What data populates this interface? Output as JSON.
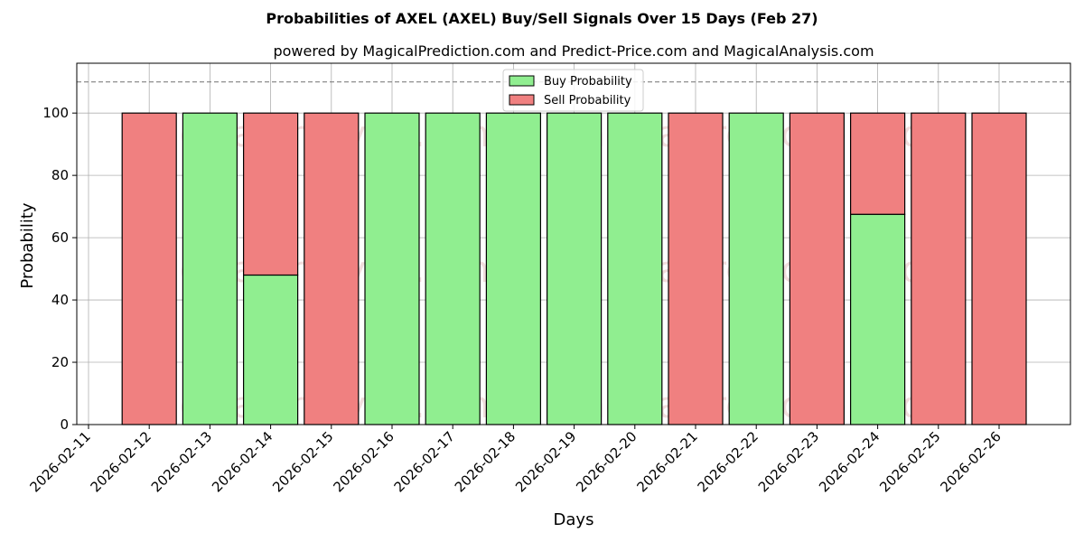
{
  "chart_data": {
    "type": "bar",
    "stacked": true,
    "title": "Probabilities of AXEL (AXEL) Buy/Sell Signals Over 15 Days (Feb 27)",
    "subtitle": "powered by MagicalPrediction.com and Predict-Price.com and MagicalAnalysis.com",
    "xlabel": "Days",
    "ylabel": "Probability",
    "ylim": [
      0,
      116
    ],
    "yticks": [
      0,
      20,
      40,
      60,
      80,
      100
    ],
    "xtick_labels": [
      "2026-02-11",
      "2026-02-12",
      "2026-02-13",
      "2026-02-14",
      "2026-02-15",
      "2026-02-16",
      "2026-02-17",
      "2026-02-18",
      "2026-02-19",
      "2026-02-20",
      "2026-02-21",
      "2026-02-22",
      "2026-02-23",
      "2026-02-24",
      "2026-02-25",
      "2026-02-26"
    ],
    "categories": [
      "2026-02-12",
      "2026-02-13",
      "2026-02-14",
      "2026-02-15",
      "2026-02-16",
      "2026-02-17",
      "2026-02-18",
      "2026-02-19",
      "2026-02-20",
      "2026-02-21",
      "2026-02-22",
      "2026-02-23",
      "2026-02-24",
      "2026-02-25",
      "2026-02-26"
    ],
    "series": [
      {
        "name": "Buy Probability",
        "color": "#90ee90",
        "values": [
          0,
          100,
          48,
          0,
          100,
          100,
          100,
          100,
          100,
          0,
          100,
          0,
          67.5,
          0,
          0
        ]
      },
      {
        "name": "Sell Probability",
        "color": "#f08080",
        "values": [
          100,
          0,
          52,
          100,
          0,
          0,
          0,
          0,
          0,
          100,
          0,
          100,
          32.5,
          100,
          100
        ]
      }
    ],
    "reference_line": 110,
    "grid": true,
    "legend": "top-center",
    "watermarks": [
      "MagicalAnalysis.com",
      "MagicalPrediction.com"
    ]
  }
}
